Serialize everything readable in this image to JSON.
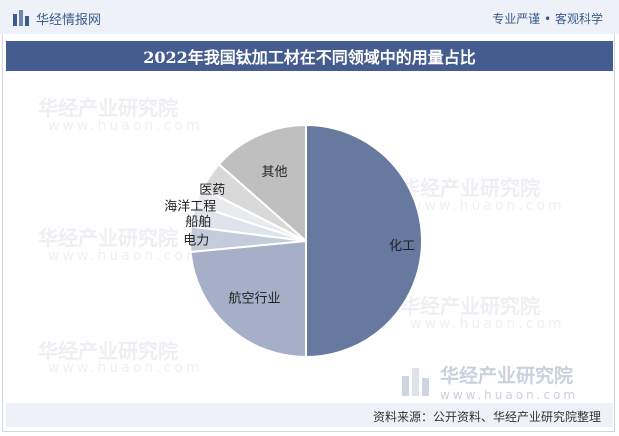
{
  "header": {
    "brand": "华经情报网",
    "tagline": "专业严谨 • 客观科学"
  },
  "title": "2022年我国钛加工材在不同领域中的用量占比",
  "chart_data": {
    "type": "pie",
    "slices": [
      {
        "label": "化工",
        "value": 50.0,
        "color": "#67799f"
      },
      {
        "label": "航空行业",
        "value": 23.5,
        "color": "#a5b0c8"
      },
      {
        "label": "电力",
        "value": 3.5,
        "color": "#c4ccdb"
      },
      {
        "label": "船舶",
        "value": 3.0,
        "color": "#dfe3ec"
      },
      {
        "label": "海洋工程",
        "value": 2.5,
        "color": "#e9ebef"
      },
      {
        "label": "医药",
        "value": 4.0,
        "color": "#d9d9d9"
      },
      {
        "label": "其他",
        "value": 13.5,
        "color": "#bfbfbf"
      }
    ]
  },
  "watermark": {
    "name": "华经产业研究院",
    "url": "www.huaon.com"
  },
  "footer": {
    "source": "资料来源：公开资料、华经产业研究院整理"
  }
}
